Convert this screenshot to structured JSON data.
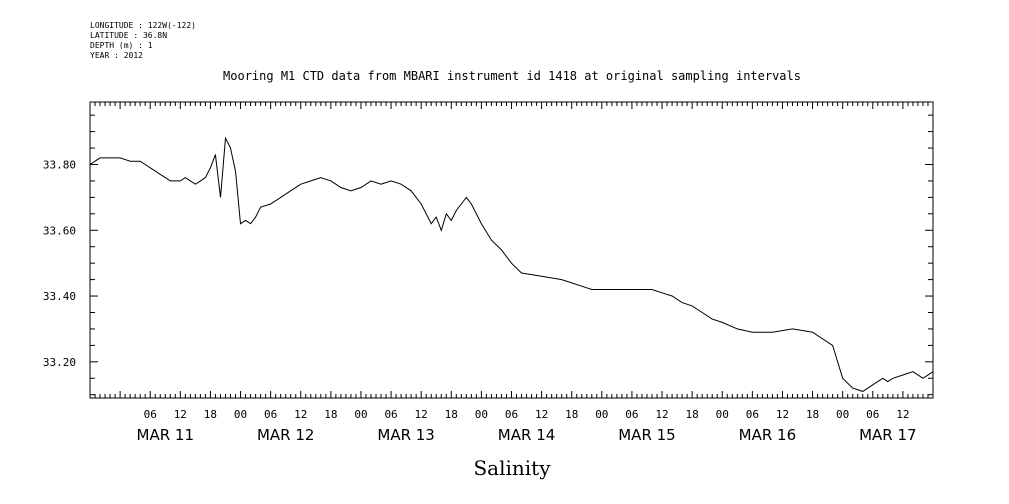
{
  "meta": {
    "longitude": "LONGITUDE : 122W(-122)",
    "latitude": "LATITUDE : 36.8N",
    "depth": "DEPTH (m) : 1",
    "year": "YEAR : 2012"
  },
  "chart_data": {
    "type": "line",
    "title": "Mooring M1 CTD data from MBARI instrument id 1418 at original sampling intervals",
    "xlabel": "Salinity",
    "ylabel": "",
    "x_unit": "hours since MAR 11 00:00",
    "xlim": [
      -6,
      162
    ],
    "ylim": [
      33.09,
      33.99
    ],
    "y_ticks": [
      33.2,
      33.4,
      33.6,
      33.8
    ],
    "y_tick_labels": [
      "33.20",
      "33.40",
      "33.60",
      "33.80"
    ],
    "hour_ticks": [
      "06",
      "12",
      "18",
      "00"
    ],
    "day_labels": [
      "MAR 11",
      "MAR 12",
      "MAR 13",
      "MAR 14",
      "MAR 15",
      "MAR 16",
      "MAR 17"
    ],
    "grid": false,
    "series": [
      {
        "x": [
          -6,
          -4,
          -2,
          0,
          2,
          4,
          5,
          6,
          7,
          8,
          9,
          10,
          11,
          12,
          13,
          14,
          15,
          16,
          17,
          18,
          19,
          20,
          21,
          22,
          23,
          24,
          25,
          26,
          27,
          28,
          30,
          32,
          34,
          36,
          38,
          40,
          42,
          44,
          46,
          48,
          50,
          52,
          54,
          56,
          58,
          60,
          62,
          63,
          64,
          65,
          66,
          67,
          68,
          69,
          70,
          72,
          74,
          76,
          78,
          80,
          84,
          88,
          90,
          92,
          94,
          96,
          98,
          100,
          102,
          104,
          106,
          108,
          110,
          112,
          114,
          116,
          118,
          120,
          123,
          126,
          130,
          134,
          138,
          142,
          144,
          146,
          148,
          150,
          151,
          152,
          153,
          154,
          156,
          158,
          160,
          162
        ],
        "y": [
          33.8,
          33.82,
          33.82,
          33.82,
          33.81,
          33.81,
          33.8,
          33.79,
          33.78,
          33.77,
          33.76,
          33.75,
          33.75,
          33.75,
          33.76,
          33.75,
          33.74,
          33.75,
          33.76,
          33.79,
          33.83,
          33.7,
          33.88,
          33.85,
          33.78,
          33.62,
          33.63,
          33.62,
          33.64,
          33.67,
          33.68,
          33.7,
          33.72,
          33.74,
          33.75,
          33.76,
          33.75,
          33.73,
          33.72,
          33.73,
          33.75,
          33.74,
          33.75,
          33.74,
          33.72,
          33.68,
          33.62,
          33.64,
          33.6,
          33.65,
          33.63,
          33.66,
          33.68,
          33.7,
          33.68,
          33.62,
          33.57,
          33.54,
          33.5,
          33.47,
          33.46,
          33.45,
          33.44,
          33.43,
          33.42,
          33.42,
          33.42,
          33.42,
          33.42,
          33.42,
          33.42,
          33.41,
          33.4,
          33.38,
          33.37,
          33.35,
          33.33,
          33.32,
          33.3,
          33.29,
          33.29,
          33.3,
          33.29,
          33.25,
          33.15,
          33.12,
          33.11,
          33.13,
          33.14,
          33.15,
          33.14,
          33.15,
          33.16,
          33.17,
          33.15,
          33.17
        ]
      }
    ]
  }
}
